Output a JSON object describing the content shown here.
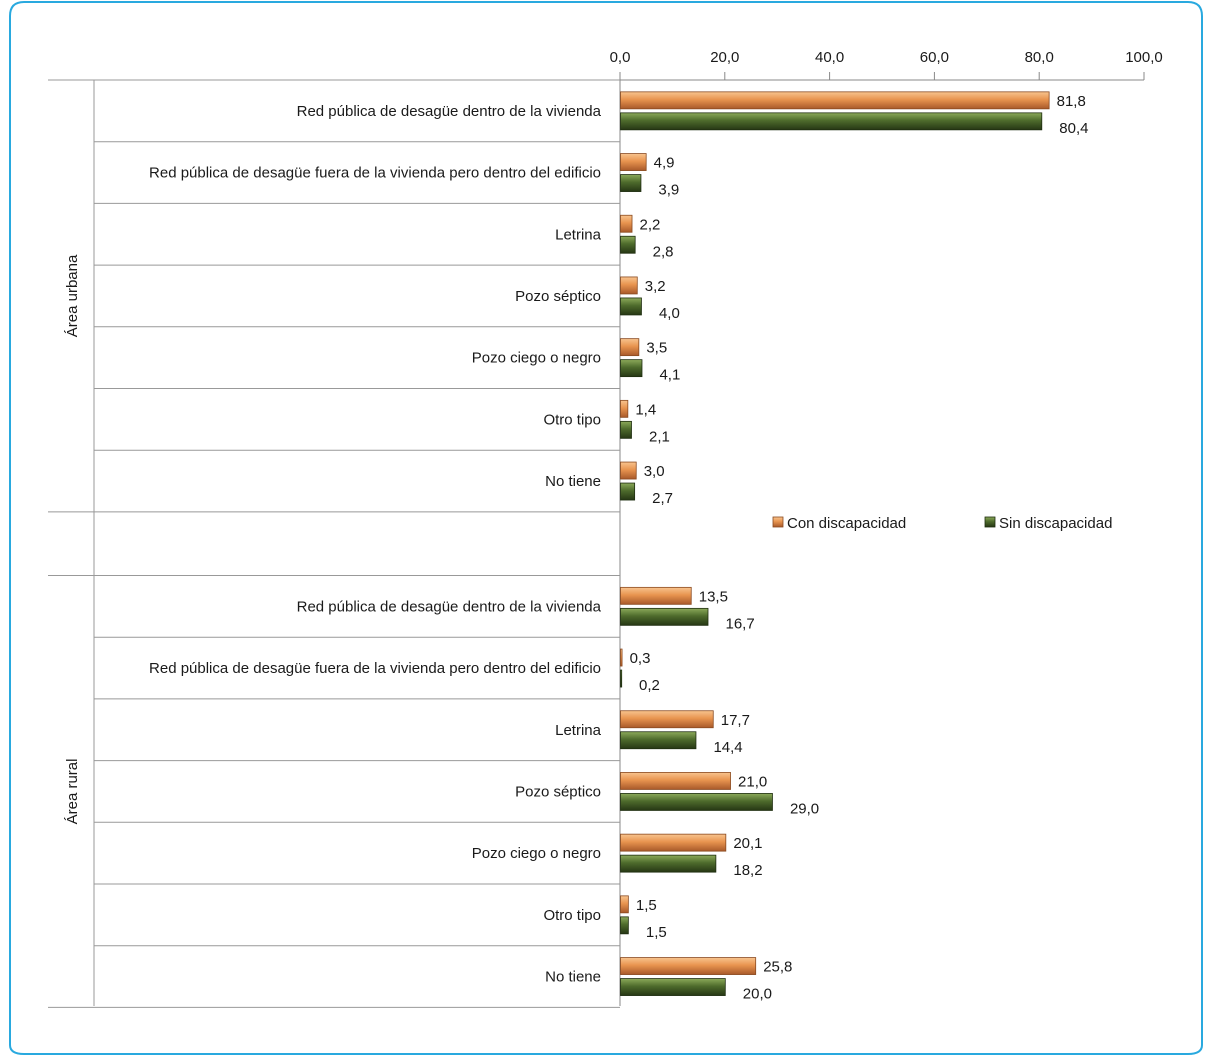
{
  "chart_data": {
    "type": "bar",
    "orientation": "horizontal",
    "xlim": [
      0,
      100
    ],
    "x_ticks": [
      "0,0",
      "20,0",
      "40,0",
      "60,0",
      "80,0",
      "100,0"
    ],
    "x_tick_values": [
      0,
      20,
      40,
      60,
      80,
      100
    ],
    "legend_position": "right, below urban group",
    "series": [
      {
        "name": "Con discapacidad",
        "color": "#e8944f"
      },
      {
        "name": "Sin discapacidad",
        "color": "#4e6b2c"
      }
    ],
    "groups": [
      {
        "label": "Área urbana",
        "categories": [
          {
            "label": "Red pública de desagüe dentro de la vivienda",
            "values": [
              81.8,
              80.4
            ],
            "labels": [
              "81,8",
              "80,4"
            ]
          },
          {
            "label": "Red pública de desagüe fuera de la vivienda pero dentro del edificio",
            "values": [
              4.9,
              3.9
            ],
            "labels": [
              "4,9",
              "3,9"
            ]
          },
          {
            "label": "Letrina",
            "values": [
              2.2,
              2.8
            ],
            "labels": [
              "2,2",
              "2,8"
            ]
          },
          {
            "label": "Pozo séptico",
            "values": [
              3.2,
              4.0
            ],
            "labels": [
              "3,2",
              "4,0"
            ]
          },
          {
            "label": "Pozo ciego o negro",
            "values": [
              3.5,
              4.1
            ],
            "labels": [
              "3,5",
              "4,1"
            ]
          },
          {
            "label": "Otro tipo",
            "values": [
              1.4,
              2.1
            ],
            "labels": [
              "1,4",
              "2,1"
            ]
          },
          {
            "label": "No tiene",
            "values": [
              3.0,
              2.7
            ],
            "labels": [
              "3,0",
              "2,7"
            ]
          }
        ]
      },
      {
        "label": "Área rural",
        "categories": [
          {
            "label": "Red pública de desagüe dentro de la vivienda",
            "values": [
              13.5,
              16.7
            ],
            "labels": [
              "13,5",
              "16,7"
            ]
          },
          {
            "label": "Red pública de desagüe fuera de la vivienda pero dentro del edificio",
            "values": [
              0.3,
              0.2
            ],
            "labels": [
              "0,3",
              "0,2"
            ]
          },
          {
            "label": "Letrina",
            "values": [
              17.7,
              14.4
            ],
            "labels": [
              "17,7",
              "14,4"
            ]
          },
          {
            "label": "Pozo séptico",
            "values": [
              21.0,
              29.0
            ],
            "labels": [
              "21,0",
              "29,0"
            ]
          },
          {
            "label": "Pozo ciego o negro",
            "values": [
              20.1,
              18.2
            ],
            "labels": [
              "20,1",
              "18,2"
            ]
          },
          {
            "label": "Otro tipo",
            "values": [
              1.5,
              1.5
            ],
            "labels": [
              "1,5",
              "1,5"
            ]
          },
          {
            "label": "No tiene",
            "values": [
              25.8,
              20.0
            ],
            "labels": [
              "25,8",
              "20,0"
            ]
          }
        ]
      }
    ]
  },
  "frame_color": "#29a9df"
}
